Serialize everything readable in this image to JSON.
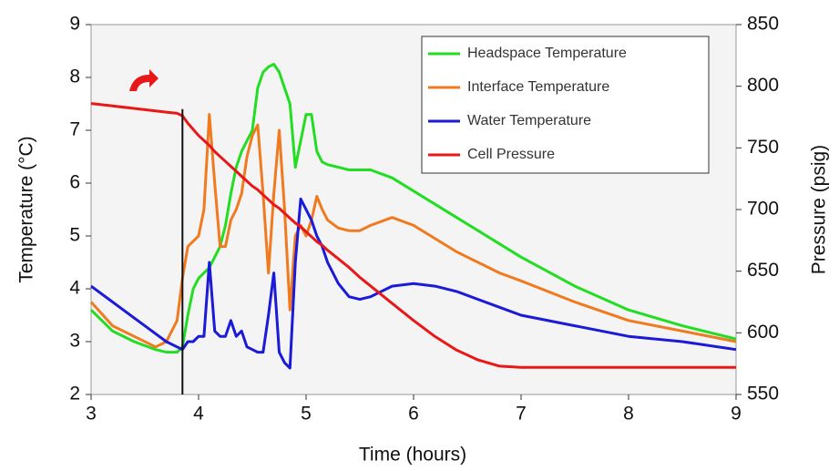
{
  "chart_data": {
    "type": "line",
    "x_label": "Time (hours)",
    "y_label": "Temperature (°C)",
    "y2_label": "Pressure (psig)",
    "x": [
      3.0,
      3.2,
      3.4,
      3.6,
      3.7,
      3.8,
      3.85,
      3.9,
      3.95,
      4.0,
      4.05,
      4.1,
      4.15,
      4.2,
      4.25,
      4.3,
      4.35,
      4.4,
      4.45,
      4.5,
      4.55,
      4.6,
      4.65,
      4.7,
      4.75,
      4.8,
      4.85,
      4.9,
      4.95,
      5.0,
      5.05,
      5.1,
      5.15,
      5.2,
      5.3,
      5.4,
      5.5,
      5.6,
      5.8,
      6.0,
      6.2,
      6.4,
      6.6,
      6.8,
      7.0,
      7.5,
      8.0,
      8.5,
      9.0
    ],
    "series": [
      {
        "name": "Headspace Temperature",
        "color": "#22dd22",
        "values": [
          3.6,
          3.2,
          3.0,
          2.85,
          2.8,
          2.8,
          2.9,
          3.5,
          4.0,
          4.2,
          4.3,
          4.4,
          4.6,
          4.8,
          5.2,
          5.8,
          6.3,
          6.6,
          6.8,
          7.0,
          7.8,
          8.1,
          8.2,
          8.25,
          8.1,
          7.8,
          7.5,
          6.3,
          6.8,
          7.3,
          7.3,
          6.6,
          6.4,
          6.35,
          6.3,
          6.25,
          6.25,
          6.25,
          6.1,
          5.85,
          5.6,
          5.35,
          5.1,
          4.85,
          4.6,
          4.05,
          3.6,
          3.3,
          3.05
        ]
      },
      {
        "name": "Interface Temperature",
        "color": "#f07a20",
        "values": [
          3.75,
          3.3,
          3.1,
          2.9,
          3.0,
          3.4,
          4.2,
          4.8,
          4.9,
          5.0,
          5.5,
          7.3,
          6.0,
          4.8,
          4.8,
          5.3,
          5.5,
          5.8,
          6.5,
          6.9,
          7.1,
          5.8,
          4.3,
          5.8,
          7.0,
          5.5,
          3.6,
          5.0,
          5.2,
          5.0,
          5.3,
          5.75,
          5.5,
          5.3,
          5.15,
          5.1,
          5.1,
          5.2,
          5.35,
          5.2,
          4.95,
          4.7,
          4.5,
          4.3,
          4.15,
          3.75,
          3.4,
          3.2,
          3.0
        ]
      },
      {
        "name": "Water Temperature",
        "color": "#1a1ad8",
        "values": [
          4.05,
          3.75,
          3.45,
          3.15,
          3.0,
          2.9,
          2.85,
          3.0,
          3.0,
          3.1,
          3.1,
          4.5,
          3.2,
          3.1,
          3.1,
          3.4,
          3.1,
          3.2,
          2.9,
          2.85,
          2.8,
          2.8,
          3.5,
          4.3,
          2.8,
          2.6,
          2.5,
          4.5,
          5.7,
          5.5,
          5.3,
          5.0,
          4.8,
          4.5,
          4.1,
          3.85,
          3.8,
          3.85,
          4.05,
          4.1,
          4.05,
          3.95,
          3.8,
          3.65,
          3.5,
          3.3,
          3.1,
          3.0,
          2.85
        ]
      },
      {
        "name": "Cell Pressure",
        "color": "#e81818",
        "axis": "y2",
        "values": [
          786,
          784,
          782,
          780,
          779,
          778,
          776,
          770,
          765,
          760,
          756,
          752,
          747,
          743,
          739,
          735,
          731,
          727,
          723,
          719,
          716,
          712,
          708,
          704,
          701,
          697,
          693,
          689,
          686,
          682,
          678,
          674,
          671,
          667,
          660,
          653,
          645,
          638,
          624,
          610,
          597,
          586,
          578,
          573,
          572,
          572,
          572,
          572,
          572
        ]
      }
    ],
    "vline_x": 3.85,
    "xlim": [
      3,
      9
    ],
    "xticks": [
      3,
      4,
      5,
      6,
      7,
      8,
      9
    ],
    "ylim": [
      2,
      9
    ],
    "yticks": [
      2,
      3,
      4,
      5,
      6,
      7,
      8,
      9
    ],
    "y2lim": [
      550,
      850
    ],
    "y2ticks": [
      550,
      600,
      650,
      700,
      750,
      800,
      850
    ],
    "legend": "top-right"
  }
}
